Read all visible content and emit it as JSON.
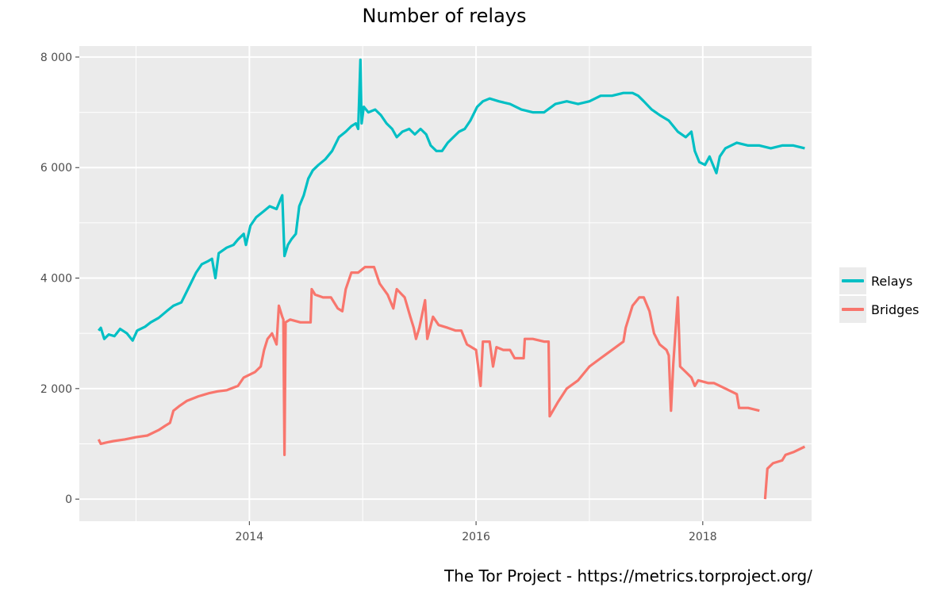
{
  "chart_data": {
    "type": "line",
    "title": "Number of relays",
    "caption": "The Tor Project - https://metrics.torproject.org/",
    "xlabel": "",
    "ylabel": "",
    "xlim": [
      2012.5,
      2018.96
    ],
    "ylim": [
      -400,
      8200
    ],
    "y_ticks": [
      0,
      2000,
      4000,
      6000,
      8000
    ],
    "y_tick_labels": [
      "0",
      "2 000",
      "4 000",
      "6 000",
      "8 000"
    ],
    "x_ticks": [
      2014,
      2016,
      2018
    ],
    "x_tick_labels": [
      "2014",
      "2016",
      "2018"
    ],
    "x_minor_ticks": [
      2013,
      2015,
      2017
    ],
    "y_minor_ticks": [
      1000,
      3000,
      5000,
      7000
    ],
    "grid": true,
    "legend_position": "right",
    "series": [
      {
        "name": "Relays",
        "color": "#00BFC4",
        "points": [
          [
            2012.67,
            3050
          ],
          [
            2012.69,
            3100
          ],
          [
            2012.72,
            2900
          ],
          [
            2012.76,
            2980
          ],
          [
            2012.81,
            2950
          ],
          [
            2012.86,
            3080
          ],
          [
            2012.92,
            3000
          ],
          [
            2012.97,
            2870
          ],
          [
            2013.01,
            3050
          ],
          [
            2013.08,
            3120
          ],
          [
            2013.13,
            3200
          ],
          [
            2013.2,
            3280
          ],
          [
            2013.27,
            3400
          ],
          [
            2013.33,
            3500
          ],
          [
            2013.4,
            3560
          ],
          [
            2013.47,
            3850
          ],
          [
            2013.53,
            4100
          ],
          [
            2013.58,
            4250
          ],
          [
            2013.63,
            4300
          ],
          [
            2013.67,
            4350
          ],
          [
            2013.7,
            4000
          ],
          [
            2013.73,
            4450
          ],
          [
            2013.8,
            4550
          ],
          [
            2013.86,
            4600
          ],
          [
            2013.9,
            4700
          ],
          [
            2013.95,
            4800
          ],
          [
            2013.97,
            4600
          ],
          [
            2014.01,
            4950
          ],
          [
            2014.06,
            5100
          ],
          [
            2014.12,
            5200
          ],
          [
            2014.18,
            5300
          ],
          [
            2014.24,
            5250
          ],
          [
            2014.27,
            5400
          ],
          [
            2014.29,
            5500
          ],
          [
            2014.31,
            4400
          ],
          [
            2014.34,
            4600
          ],
          [
            2014.37,
            4700
          ],
          [
            2014.41,
            4800
          ],
          [
            2014.44,
            5300
          ],
          [
            2014.48,
            5500
          ],
          [
            2014.52,
            5800
          ],
          [
            2014.56,
            5950
          ],
          [
            2014.61,
            6050
          ],
          [
            2014.67,
            6150
          ],
          [
            2014.73,
            6300
          ],
          [
            2014.79,
            6550
          ],
          [
            2014.85,
            6650
          ],
          [
            2014.9,
            6750
          ],
          [
            2014.94,
            6800
          ],
          [
            2014.96,
            6700
          ],
          [
            2014.98,
            7950
          ],
          [
            2014.99,
            6800
          ],
          [
            2015.01,
            7100
          ],
          [
            2015.05,
            7000
          ],
          [
            2015.11,
            7050
          ],
          [
            2015.16,
            6950
          ],
          [
            2015.21,
            6800
          ],
          [
            2015.26,
            6700
          ],
          [
            2015.3,
            6550
          ],
          [
            2015.35,
            6650
          ],
          [
            2015.41,
            6700
          ],
          [
            2015.46,
            6600
          ],
          [
            2015.51,
            6700
          ],
          [
            2015.56,
            6600
          ],
          [
            2015.6,
            6400
          ],
          [
            2015.65,
            6300
          ],
          [
            2015.7,
            6300
          ],
          [
            2015.75,
            6450
          ],
          [
            2015.8,
            6550
          ],
          [
            2015.85,
            6650
          ],
          [
            2015.9,
            6700
          ],
          [
            2015.95,
            6850
          ],
          [
            2016.01,
            7100
          ],
          [
            2016.06,
            7200
          ],
          [
            2016.12,
            7250
          ],
          [
            2016.2,
            7200
          ],
          [
            2016.3,
            7150
          ],
          [
            2016.4,
            7050
          ],
          [
            2016.5,
            7000
          ],
          [
            2016.6,
            7000
          ],
          [
            2016.7,
            7150
          ],
          [
            2016.8,
            7200
          ],
          [
            2016.9,
            7150
          ],
          [
            2017.0,
            7200
          ],
          [
            2017.1,
            7300
          ],
          [
            2017.2,
            7300
          ],
          [
            2017.3,
            7350
          ],
          [
            2017.38,
            7350
          ],
          [
            2017.43,
            7300
          ],
          [
            2017.48,
            7200
          ],
          [
            2017.55,
            7050
          ],
          [
            2017.62,
            6950
          ],
          [
            2017.7,
            6850
          ],
          [
            2017.78,
            6650
          ],
          [
            2017.85,
            6550
          ],
          [
            2017.9,
            6650
          ],
          [
            2017.93,
            6300
          ],
          [
            2017.97,
            6100
          ],
          [
            2018.02,
            6050
          ],
          [
            2018.06,
            6200
          ],
          [
            2018.09,
            6050
          ],
          [
            2018.12,
            5900
          ],
          [
            2018.15,
            6200
          ],
          [
            2018.2,
            6350
          ],
          [
            2018.3,
            6450
          ],
          [
            2018.4,
            6400
          ],
          [
            2018.5,
            6400
          ],
          [
            2018.6,
            6350
          ],
          [
            2018.7,
            6400
          ],
          [
            2018.8,
            6400
          ],
          [
            2018.9,
            6350
          ]
        ]
      },
      {
        "name": "Bridges",
        "color": "#F8766D",
        "segments": [
          [
            [
              2012.67,
              1080
            ],
            [
              2012.69,
              1000
            ],
            [
              2012.73,
              1020
            ],
            [
              2012.8,
              1050
            ],
            [
              2012.9,
              1080
            ],
            [
              2013.0,
              1120
            ],
            [
              2013.1,
              1150
            ],
            [
              2013.2,
              1250
            ],
            [
              2013.26,
              1330
            ],
            [
              2013.3,
              1380
            ],
            [
              2013.33,
              1600
            ],
            [
              2013.38,
              1680
            ],
            [
              2013.45,
              1780
            ],
            [
              2013.55,
              1860
            ],
            [
              2013.65,
              1920
            ],
            [
              2013.72,
              1950
            ],
            [
              2013.8,
              1970
            ],
            [
              2013.9,
              2050
            ],
            [
              2013.95,
              2200
            ],
            [
              2014.0,
              2250
            ],
            [
              2014.05,
              2300
            ],
            [
              2014.1,
              2400
            ],
            [
              2014.13,
              2700
            ],
            [
              2014.16,
              2900
            ],
            [
              2014.2,
              3000
            ],
            [
              2014.24,
              2800
            ],
            [
              2014.26,
              3500
            ],
            [
              2014.29,
              3300
            ],
            [
              2014.3,
              3250
            ],
            [
              2014.31,
              800
            ],
            [
              2014.32,
              3200
            ],
            [
              2014.36,
              3250
            ],
            [
              2014.45,
              3200
            ],
            [
              2014.54,
              3200
            ],
            [
              2014.55,
              3800
            ],
            [
              2014.58,
              3700
            ],
            [
              2014.65,
              3650
            ],
            [
              2014.72,
              3650
            ],
            [
              2014.78,
              3450
            ],
            [
              2014.82,
              3400
            ],
            [
              2014.85,
              3800
            ],
            [
              2014.9,
              4100
            ],
            [
              2014.96,
              4100
            ],
            [
              2015.02,
              4200
            ],
            [
              2015.1,
              4200
            ],
            [
              2015.15,
              3900
            ],
            [
              2015.22,
              3700
            ],
            [
              2015.27,
              3450
            ],
            [
              2015.3,
              3800
            ],
            [
              2015.37,
              3650
            ],
            [
              2015.42,
              3300
            ],
            [
              2015.45,
              3100
            ],
            [
              2015.47,
              2900
            ],
            [
              2015.5,
              3100
            ],
            [
              2015.55,
              3600
            ],
            [
              2015.57,
              2900
            ],
            [
              2015.62,
              3300
            ],
            [
              2015.67,
              3150
            ],
            [
              2015.75,
              3100
            ],
            [
              2015.82,
              3050
            ],
            [
              2015.87,
              3050
            ],
            [
              2015.92,
              2800
            ],
            [
              2016.0,
              2700
            ],
            [
              2016.04,
              2050
            ],
            [
              2016.06,
              2850
            ],
            [
              2016.12,
              2850
            ],
            [
              2016.15,
              2400
            ],
            [
              2016.18,
              2750
            ],
            [
              2016.24,
              2700
            ],
            [
              2016.3,
              2700
            ],
            [
              2016.34,
              2550
            ],
            [
              2016.38,
              2550
            ],
            [
              2016.42,
              2550
            ],
            [
              2016.43,
              2900
            ],
            [
              2016.5,
              2900
            ],
            [
              2016.6,
              2850
            ],
            [
              2016.64,
              2850
            ],
            [
              2016.65,
              1500
            ],
            [
              2016.72,
              1750
            ],
            [
              2016.8,
              2000
            ],
            [
              2016.9,
              2150
            ],
            [
              2017.0,
              2400
            ],
            [
              2017.1,
              2550
            ],
            [
              2017.2,
              2700
            ],
            [
              2017.3,
              2850
            ],
            [
              2017.32,
              3100
            ],
            [
              2017.38,
              3500
            ],
            [
              2017.44,
              3650
            ],
            [
              2017.48,
              3650
            ],
            [
              2017.53,
              3400
            ],
            [
              2017.57,
              3000
            ],
            [
              2017.62,
              2800
            ],
            [
              2017.68,
              2700
            ],
            [
              2017.7,
              2600
            ],
            [
              2017.72,
              1600
            ],
            [
              2017.74,
              2450
            ],
            [
              2017.78,
              3650
            ],
            [
              2017.8,
              2400
            ],
            [
              2017.85,
              2300
            ],
            [
              2017.9,
              2200
            ],
            [
              2017.93,
              2050
            ],
            [
              2017.96,
              2150
            ],
            [
              2018.05,
              2100
            ],
            [
              2018.1,
              2100
            ],
            [
              2018.2,
              2000
            ],
            [
              2018.3,
              1900
            ],
            [
              2018.32,
              1650
            ],
            [
              2018.4,
              1650
            ],
            [
              2018.5,
              1600
            ]
          ],
          [
            [
              2018.55,
              0
            ],
            [
              2018.57,
              550
            ],
            [
              2018.62,
              650
            ],
            [
              2018.7,
              700
            ],
            [
              2018.73,
              800
            ],
            [
              2018.8,
              850
            ],
            [
              2018.9,
              950
            ]
          ]
        ]
      }
    ]
  }
}
